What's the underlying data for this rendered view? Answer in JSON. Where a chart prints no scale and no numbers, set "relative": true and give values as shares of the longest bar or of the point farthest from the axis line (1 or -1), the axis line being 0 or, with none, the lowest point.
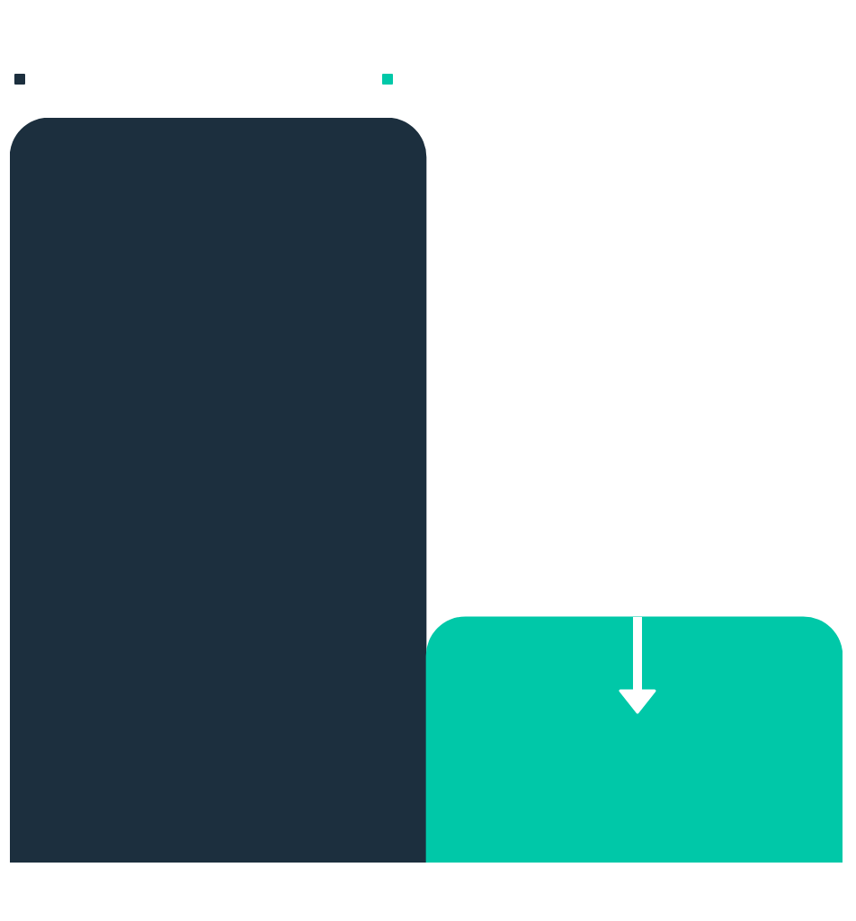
{
  "chart_data": {
    "type": "bar",
    "categories": [
      null,
      null
    ],
    "values": [
      1,
      0.33
    ],
    "colors": [
      "#1c2f3e",
      "#00c8a8"
    ],
    "relative": true
  }
}
